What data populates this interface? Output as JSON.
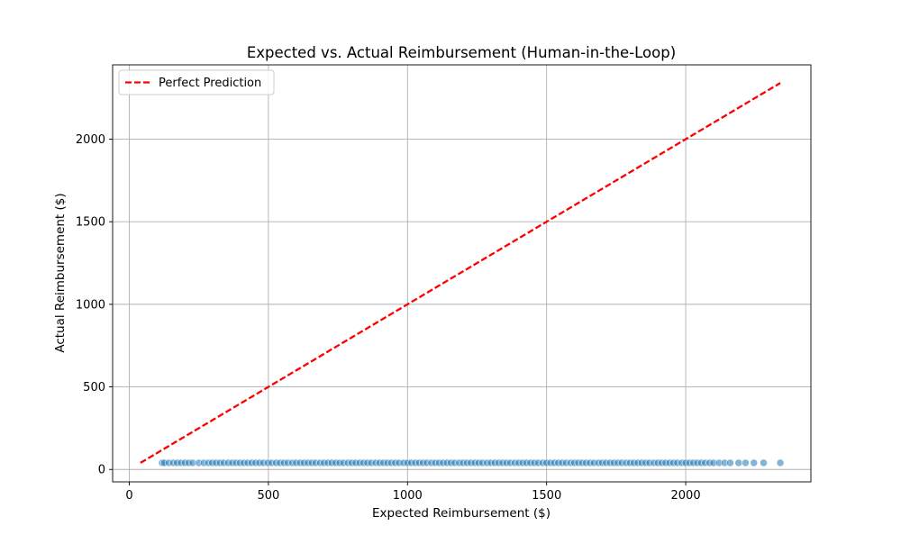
{
  "chart_data": {
    "type": "scatter",
    "title": "Expected vs. Actual Reimbursement (Human-in-the-Loop)",
    "xlabel": "Expected Reimbursement ($)",
    "ylabel": "Actual Reimbursement ($)",
    "xlim": [
      -60,
      2450
    ],
    "ylim": [
      -75,
      2450
    ],
    "xticks": [
      0,
      500,
      1000,
      1500,
      2000
    ],
    "yticks": [
      0,
      500,
      1000,
      1500,
      2000
    ],
    "grid": true,
    "legend": {
      "position": "top-left",
      "entries": [
        "Perfect Prediction"
      ]
    },
    "reference_line": {
      "name": "Perfect Prediction",
      "color": "#ff0000",
      "style": "dashed",
      "x": [
        40,
        2340
      ],
      "y": [
        40,
        2340
      ]
    },
    "scatter": {
      "color": "#1f77b4",
      "alpha": 0.55,
      "y_constant": 40,
      "x": [
        118,
        126,
        142,
        158,
        172,
        186,
        200,
        214,
        228,
        250,
        268,
        284,
        298,
        312,
        326,
        340,
        356,
        370,
        384,
        398,
        412,
        426,
        440,
        454,
        468,
        482,
        498,
        512,
        528,
        542,
        556,
        570,
        586,
        600,
        614,
        628,
        642,
        656,
        670,
        686,
        700,
        714,
        728,
        742,
        756,
        770,
        786,
        800,
        814,
        828,
        842,
        856,
        870,
        886,
        900,
        914,
        928,
        942,
        956,
        970,
        986,
        1000,
        1014,
        1028,
        1042,
        1056,
        1070,
        1086,
        1100,
        1114,
        1128,
        1142,
        1156,
        1170,
        1186,
        1200,
        1214,
        1228,
        1242,
        1256,
        1270,
        1286,
        1300,
        1314,
        1328,
        1342,
        1356,
        1370,
        1386,
        1400,
        1414,
        1428,
        1442,
        1456,
        1470,
        1486,
        1500,
        1514,
        1528,
        1542,
        1556,
        1570,
        1586,
        1600,
        1614,
        1628,
        1642,
        1656,
        1670,
        1686,
        1700,
        1714,
        1728,
        1742,
        1756,
        1770,
        1786,
        1800,
        1814,
        1828,
        1842,
        1856,
        1870,
        1886,
        1900,
        1914,
        1928,
        1942,
        1956,
        1970,
        1986,
        2000,
        2014,
        2028,
        2042,
        2056,
        2070,
        2086,
        2100,
        2120,
        2140,
        2160,
        2190,
        2215,
        2245,
        2280,
        2340
      ]
    }
  }
}
